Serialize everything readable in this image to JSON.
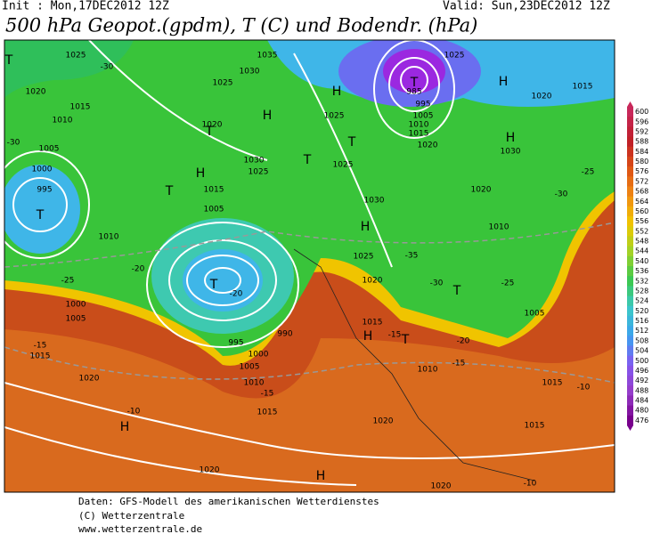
{
  "header": {
    "init": "Init : Mon,17DEC2012 12Z",
    "valid": "Valid: Sun,23DEC2012 12Z",
    "title": "500 hPa Geopot.(gpdm), T (C) und Bodendr. (hPa)"
  },
  "colorbar": {
    "ticks": [
      600,
      596,
      592,
      588,
      584,
      580,
      576,
      572,
      568,
      564,
      560,
      556,
      552,
      548,
      544,
      540,
      536,
      532,
      528,
      524,
      520,
      516,
      512,
      508,
      504,
      500,
      496,
      492,
      488,
      484,
      480,
      476
    ]
  },
  "map_labels": [
    "T",
    "1025",
    "-30",
    "1020",
    "1015",
    "1010",
    "-30",
    "1005",
    "1000",
    "995",
    "T",
    "H",
    "T",
    "1015",
    "H",
    "1030",
    "1025",
    "1020",
    "T",
    "1030",
    "1025",
    "1005",
    "1010",
    "-20",
    "-25",
    "1000",
    "1005",
    "1015",
    "-15",
    "990",
    "995",
    "1000",
    "1005",
    "1010",
    "1015",
    "-15",
    "1020",
    "-10",
    "H",
    "1020",
    "1020",
    "H",
    "1020",
    "1015",
    "-10",
    "T",
    "985",
    "995",
    "1005",
    "1010",
    "1015",
    "1020",
    "H",
    "1025",
    "T",
    "1025",
    "T",
    "1035",
    "1025",
    "H",
    "1020",
    "1015",
    "H",
    "1030",
    "-25",
    "1020",
    "-30",
    "1030",
    "H",
    "1025",
    "1020",
    "-35",
    "1010",
    "-30",
    "T",
    "-25",
    "1015",
    "H",
    "T",
    "-15",
    "1010",
    "-15",
    "-20",
    "1005",
    "1015",
    "-10",
    "T",
    "-20"
  ],
  "footer": {
    "source": "Daten: GFS-Modell des amerikanischen Wetterdienstes",
    "copyright": "(C) Wetterzentrale",
    "url": "www.wetterzentrale.de"
  }
}
